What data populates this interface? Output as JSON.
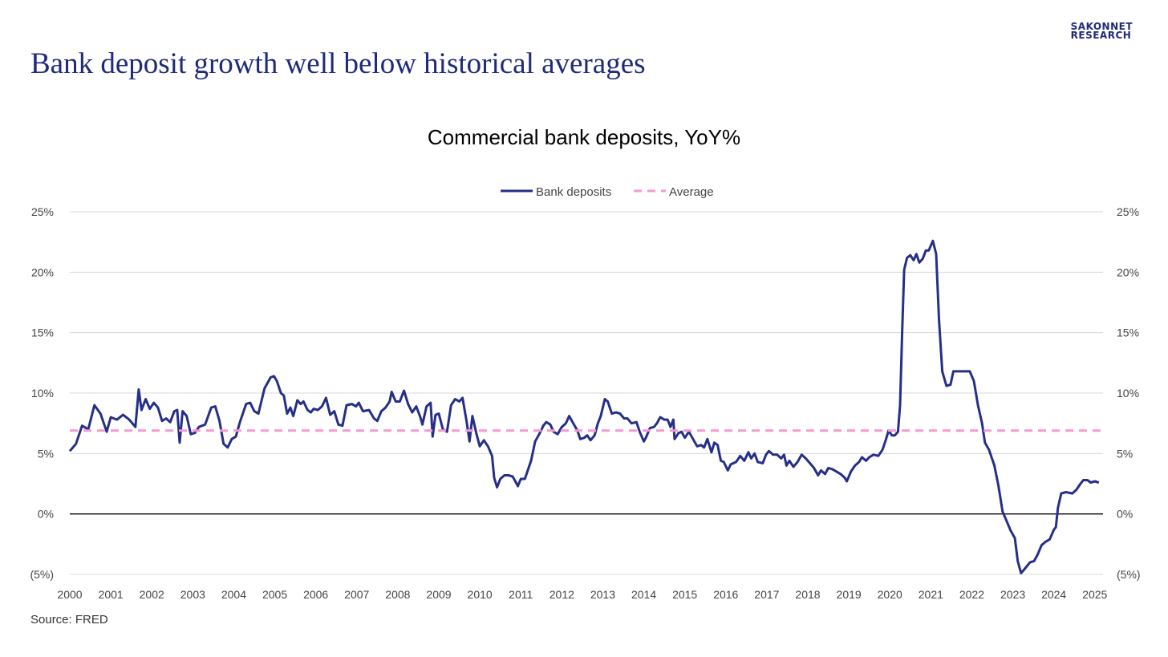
{
  "logo": {
    "line1": "SAKONNET",
    "line2": "RESEARCH"
  },
  "headline": "Bank deposit growth well below historical averages",
  "source": "Source: FRED",
  "colors": {
    "series": "#262f87",
    "average": "#f49ad3",
    "zero_line": "#000000",
    "grid": "#d9d9d9",
    "negative_label": "#c00000"
  },
  "chart_data": {
    "type": "line",
    "title": "Commercial bank deposits, YoY%",
    "xlabel": "",
    "ylabel": "",
    "legend_position": "top-center",
    "grid": true,
    "ylim": [
      -5,
      25
    ],
    "xlim": [
      2000,
      2025.2
    ],
    "y_ticks": [
      -5,
      0,
      5,
      10,
      15,
      20,
      25
    ],
    "y_tick_labels": [
      "(5%)",
      "0%",
      "5%",
      "10%",
      "15%",
      "20%",
      "25%"
    ],
    "x_tick_labels": [
      "2000",
      "2001",
      "2002",
      "2003",
      "2004",
      "2005",
      "2006",
      "2007",
      "2008",
      "2009",
      "2010",
      "2011",
      "2012",
      "2013",
      "2014",
      "2015",
      "2016",
      "2017",
      "2018",
      "2019",
      "2020",
      "2021",
      "2022",
      "2023",
      "2024",
      "2025"
    ],
    "series": [
      {
        "name": "Bank deposits",
        "style": "solid",
        "points": [
          [
            2000.0,
            5.2
          ],
          [
            2000.15,
            5.8
          ],
          [
            2000.3,
            7.3
          ],
          [
            2000.45,
            7.0
          ],
          [
            2000.6,
            9.0
          ],
          [
            2000.75,
            8.3
          ],
          [
            2000.9,
            6.8
          ],
          [
            2001.0,
            8.0
          ],
          [
            2001.15,
            7.8
          ],
          [
            2001.3,
            8.2
          ],
          [
            2001.45,
            7.8
          ],
          [
            2001.6,
            7.2
          ],
          [
            2001.68,
            10.3
          ],
          [
            2001.75,
            8.6
          ],
          [
            2001.85,
            9.5
          ],
          [
            2001.95,
            8.7
          ],
          [
            2002.05,
            9.2
          ],
          [
            2002.15,
            8.8
          ],
          [
            2002.25,
            7.7
          ],
          [
            2002.35,
            7.9
          ],
          [
            2002.45,
            7.6
          ],
          [
            2002.55,
            8.5
          ],
          [
            2002.62,
            8.6
          ],
          [
            2002.68,
            5.9
          ],
          [
            2002.75,
            8.5
          ],
          [
            2002.85,
            8.1
          ],
          [
            2002.95,
            6.6
          ],
          [
            2003.05,
            6.7
          ],
          [
            2003.15,
            7.2
          ],
          [
            2003.3,
            7.4
          ],
          [
            2003.45,
            8.8
          ],
          [
            2003.55,
            8.9
          ],
          [
            2003.65,
            7.7
          ],
          [
            2003.75,
            5.8
          ],
          [
            2003.85,
            5.5
          ],
          [
            2003.95,
            6.2
          ],
          [
            2004.05,
            6.4
          ],
          [
            2004.15,
            7.6
          ],
          [
            2004.3,
            9.1
          ],
          [
            2004.4,
            9.2
          ],
          [
            2004.5,
            8.5
          ],
          [
            2004.6,
            8.3
          ],
          [
            2004.75,
            10.4
          ],
          [
            2004.9,
            11.3
          ],
          [
            2004.98,
            11.4
          ],
          [
            2005.05,
            11.0
          ],
          [
            2005.15,
            10.0
          ],
          [
            2005.22,
            9.8
          ],
          [
            2005.3,
            8.3
          ],
          [
            2005.38,
            8.8
          ],
          [
            2005.45,
            8.1
          ],
          [
            2005.55,
            9.4
          ],
          [
            2005.63,
            9.1
          ],
          [
            2005.7,
            9.3
          ],
          [
            2005.8,
            8.6
          ],
          [
            2005.88,
            8.4
          ],
          [
            2005.95,
            8.7
          ],
          [
            2006.05,
            8.6
          ],
          [
            2006.15,
            8.9
          ],
          [
            2006.25,
            9.6
          ],
          [
            2006.35,
            8.2
          ],
          [
            2006.45,
            8.5
          ],
          [
            2006.55,
            7.4
          ],
          [
            2006.65,
            7.3
          ],
          [
            2006.75,
            9.0
          ],
          [
            2006.88,
            9.1
          ],
          [
            2006.98,
            8.9
          ],
          [
            2007.05,
            9.2
          ],
          [
            2007.15,
            8.5
          ],
          [
            2007.3,
            8.6
          ],
          [
            2007.42,
            7.9
          ],
          [
            2007.5,
            7.7
          ],
          [
            2007.6,
            8.5
          ],
          [
            2007.7,
            8.8
          ],
          [
            2007.8,
            9.3
          ],
          [
            2007.85,
            10.1
          ],
          [
            2007.95,
            9.3
          ],
          [
            2008.05,
            9.3
          ],
          [
            2008.15,
            10.2
          ],
          [
            2008.25,
            9.1
          ],
          [
            2008.35,
            8.4
          ],
          [
            2008.45,
            8.9
          ],
          [
            2008.55,
            8.0
          ],
          [
            2008.6,
            7.4
          ],
          [
            2008.7,
            8.9
          ],
          [
            2008.8,
            9.2
          ],
          [
            2008.85,
            6.4
          ],
          [
            2008.92,
            8.2
          ],
          [
            2009.0,
            8.3
          ],
          [
            2009.1,
            7.0
          ],
          [
            2009.2,
            6.8
          ],
          [
            2009.3,
            9.0
          ],
          [
            2009.4,
            9.5
          ],
          [
            2009.5,
            9.3
          ],
          [
            2009.58,
            9.6
          ],
          [
            2009.68,
            7.6
          ],
          [
            2009.75,
            6.0
          ],
          [
            2009.82,
            8.1
          ],
          [
            2009.92,
            6.6
          ],
          [
            2010.0,
            5.6
          ],
          [
            2010.1,
            6.1
          ],
          [
            2010.2,
            5.6
          ],
          [
            2010.3,
            4.8
          ],
          [
            2010.35,
            3.0
          ],
          [
            2010.42,
            2.2
          ],
          [
            2010.5,
            2.9
          ],
          [
            2010.6,
            3.2
          ],
          [
            2010.7,
            3.2
          ],
          [
            2010.8,
            3.1
          ],
          [
            2010.85,
            2.8
          ],
          [
            2010.93,
            2.3
          ],
          [
            2011.0,
            2.9
          ],
          [
            2011.1,
            2.9
          ],
          [
            2011.25,
            4.4
          ],
          [
            2011.35,
            6.0
          ],
          [
            2011.45,
            6.6
          ],
          [
            2011.55,
            7.3
          ],
          [
            2011.62,
            7.6
          ],
          [
            2011.72,
            7.4
          ],
          [
            2011.8,
            6.8
          ],
          [
            2011.9,
            6.6
          ],
          [
            2012.0,
            7.2
          ],
          [
            2012.1,
            7.5
          ],
          [
            2012.18,
            8.1
          ],
          [
            2012.28,
            7.5
          ],
          [
            2012.38,
            6.9
          ],
          [
            2012.45,
            6.2
          ],
          [
            2012.55,
            6.3
          ],
          [
            2012.62,
            6.5
          ],
          [
            2012.7,
            6.1
          ],
          [
            2012.8,
            6.5
          ],
          [
            2012.88,
            7.5
          ],
          [
            2012.95,
            8.1
          ],
          [
            2013.05,
            9.5
          ],
          [
            2013.12,
            9.3
          ],
          [
            2013.22,
            8.3
          ],
          [
            2013.32,
            8.4
          ],
          [
            2013.42,
            8.3
          ],
          [
            2013.52,
            7.9
          ],
          [
            2013.6,
            7.9
          ],
          [
            2013.7,
            7.5
          ],
          [
            2013.82,
            7.6
          ],
          [
            2013.9,
            6.8
          ],
          [
            2014.0,
            6.0
          ],
          [
            2014.05,
            6.3
          ],
          [
            2014.15,
            7.1
          ],
          [
            2014.25,
            7.2
          ],
          [
            2014.32,
            7.5
          ],
          [
            2014.4,
            8.0
          ],
          [
            2014.5,
            7.8
          ],
          [
            2014.58,
            7.8
          ],
          [
            2014.65,
            7.2
          ],
          [
            2014.72,
            7.8
          ],
          [
            2014.75,
            6.2
          ],
          [
            2014.85,
            6.7
          ],
          [
            2014.92,
            6.8
          ],
          [
            2015.0,
            6.3
          ],
          [
            2015.1,
            6.8
          ],
          [
            2015.2,
            6.2
          ],
          [
            2015.3,
            5.6
          ],
          [
            2015.4,
            5.7
          ],
          [
            2015.47,
            5.5
          ],
          [
            2015.55,
            6.2
          ],
          [
            2015.65,
            5.1
          ],
          [
            2015.72,
            5.9
          ],
          [
            2015.8,
            5.7
          ],
          [
            2015.88,
            4.4
          ],
          [
            2015.95,
            4.3
          ],
          [
            2016.05,
            3.6
          ],
          [
            2016.12,
            4.1
          ],
          [
            2016.25,
            4.3
          ],
          [
            2016.35,
            4.8
          ],
          [
            2016.45,
            4.4
          ],
          [
            2016.55,
            5.1
          ],
          [
            2016.62,
            4.6
          ],
          [
            2016.7,
            5.0
          ],
          [
            2016.78,
            4.3
          ],
          [
            2016.9,
            4.2
          ],
          [
            2016.98,
            4.9
          ],
          [
            2017.05,
            5.2
          ],
          [
            2017.15,
            4.9
          ],
          [
            2017.25,
            4.9
          ],
          [
            2017.35,
            4.6
          ],
          [
            2017.42,
            4.9
          ],
          [
            2017.48,
            4.0
          ],
          [
            2017.55,
            4.4
          ],
          [
            2017.65,
            3.9
          ],
          [
            2017.75,
            4.3
          ],
          [
            2017.85,
            4.9
          ],
          [
            2017.95,
            4.6
          ],
          [
            2018.05,
            4.2
          ],
          [
            2018.15,
            3.8
          ],
          [
            2018.25,
            3.2
          ],
          [
            2018.32,
            3.6
          ],
          [
            2018.42,
            3.3
          ],
          [
            2018.5,
            3.8
          ],
          [
            2018.6,
            3.7
          ],
          [
            2018.7,
            3.5
          ],
          [
            2018.8,
            3.3
          ],
          [
            2018.9,
            3.0
          ],
          [
            2018.95,
            2.7
          ],
          [
            2019.05,
            3.5
          ],
          [
            2019.15,
            4.0
          ],
          [
            2019.25,
            4.3
          ],
          [
            2019.32,
            4.7
          ],
          [
            2019.42,
            4.4
          ],
          [
            2019.5,
            4.7
          ],
          [
            2019.6,
            4.9
          ],
          [
            2019.72,
            4.8
          ],
          [
            2019.82,
            5.3
          ],
          [
            2019.9,
            6.1
          ],
          [
            2019.97,
            6.9
          ],
          [
            2020.05,
            6.5
          ],
          [
            2020.12,
            6.5
          ],
          [
            2020.2,
            6.8
          ],
          [
            2020.25,
            9.0
          ],
          [
            2020.3,
            15.0
          ],
          [
            2020.35,
            20.2
          ],
          [
            2020.42,
            21.2
          ],
          [
            2020.5,
            21.4
          ],
          [
            2020.58,
            21.0
          ],
          [
            2020.65,
            21.5
          ],
          [
            2020.72,
            20.8
          ],
          [
            2020.8,
            21.1
          ],
          [
            2020.88,
            21.8
          ],
          [
            2020.95,
            21.8
          ],
          [
            2021.05,
            22.6
          ],
          [
            2021.13,
            21.5
          ],
          [
            2021.2,
            16.0
          ],
          [
            2021.28,
            11.8
          ],
          [
            2021.38,
            10.6
          ],
          [
            2021.48,
            10.7
          ],
          [
            2021.55,
            11.8
          ],
          [
            2021.7,
            11.8
          ],
          [
            2021.85,
            11.8
          ],
          [
            2021.95,
            11.8
          ],
          [
            2022.05,
            11.0
          ],
          [
            2022.15,
            9.0
          ],
          [
            2022.25,
            7.5
          ],
          [
            2022.32,
            5.9
          ],
          [
            2022.42,
            5.3
          ],
          [
            2022.55,
            4.0
          ],
          [
            2022.65,
            2.3
          ],
          [
            2022.75,
            0.2
          ],
          [
            2022.85,
            -0.6
          ],
          [
            2022.95,
            -1.4
          ],
          [
            2023.05,
            -2.0
          ],
          [
            2023.12,
            -3.9
          ],
          [
            2023.2,
            -4.9
          ],
          [
            2023.3,
            -4.5
          ],
          [
            2023.42,
            -4.0
          ],
          [
            2023.52,
            -3.9
          ],
          [
            2023.6,
            -3.4
          ],
          [
            2023.7,
            -2.6
          ],
          [
            2023.8,
            -2.3
          ],
          [
            2023.9,
            -2.1
          ],
          [
            2024.0,
            -1.3
          ],
          [
            2024.05,
            -1.1
          ],
          [
            2024.1,
            0.5
          ],
          [
            2024.18,
            1.7
          ],
          [
            2024.3,
            1.8
          ],
          [
            2024.45,
            1.7
          ],
          [
            2024.55,
            2.0
          ],
          [
            2024.65,
            2.5
          ],
          [
            2024.72,
            2.8
          ],
          [
            2024.82,
            2.8
          ],
          [
            2024.9,
            2.6
          ],
          [
            2025.0,
            2.7
          ],
          [
            2025.1,
            2.6
          ]
        ]
      },
      {
        "name": "Average",
        "style": "dashed",
        "points": [
          [
            2000.0,
            6.9
          ],
          [
            2025.2,
            6.9
          ]
        ]
      }
    ]
  }
}
